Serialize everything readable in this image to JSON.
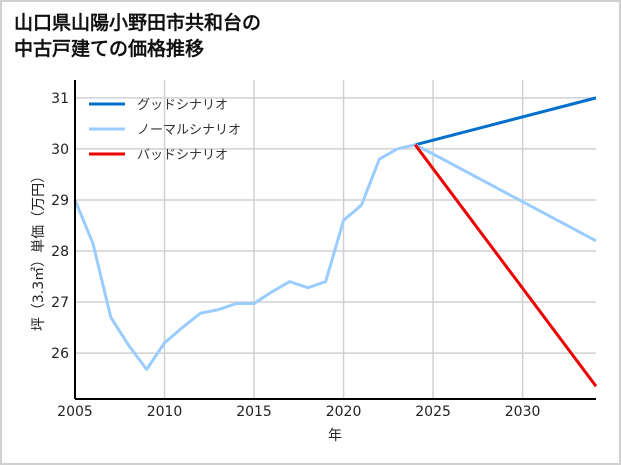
{
  "chart_data": {
    "type": "line",
    "title_lines": [
      "山口県山陽小野田市共和台の",
      "中古戸建ての価格推移"
    ],
    "xlabel": "年",
    "ylabel": "坪（3.3㎡）単価（万円）",
    "xlim": [
      2005,
      2034.1
    ],
    "ylim": [
      25.1,
      31.35
    ],
    "xticks": [
      2005,
      2010,
      2015,
      2020,
      2025,
      2030
    ],
    "yticks": [
      26,
      27,
      28,
      29,
      30,
      31
    ],
    "grid": true,
    "legend_position": "top-left",
    "series": [
      {
        "name": "グッドシナリオ",
        "color": "#0070cc",
        "x": [
          2024,
          2034.1
        ],
        "y": [
          30.08,
          31.0
        ]
      },
      {
        "name": "ノーマルシナリオ",
        "color": "#99ccff",
        "x": [
          2005,
          2006,
          2007,
          2008,
          2009,
          2010,
          2011,
          2012,
          2013,
          2014,
          2015,
          2016,
          2017,
          2018,
          2019,
          2020,
          2021,
          2022,
          2023,
          2024,
          2025,
          2034.1
        ],
        "y": [
          29.0,
          28.15,
          26.7,
          26.15,
          25.68,
          26.2,
          26.5,
          26.78,
          26.85,
          26.97,
          26.97,
          27.2,
          27.4,
          27.28,
          27.4,
          28.6,
          28.9,
          29.8,
          30.0,
          30.08,
          29.9,
          28.2
        ]
      },
      {
        "name": "バッドシナリオ",
        "color": "#ee0000",
        "x": [
          2024,
          2034.1
        ],
        "y": [
          30.08,
          25.35
        ]
      }
    ]
  }
}
